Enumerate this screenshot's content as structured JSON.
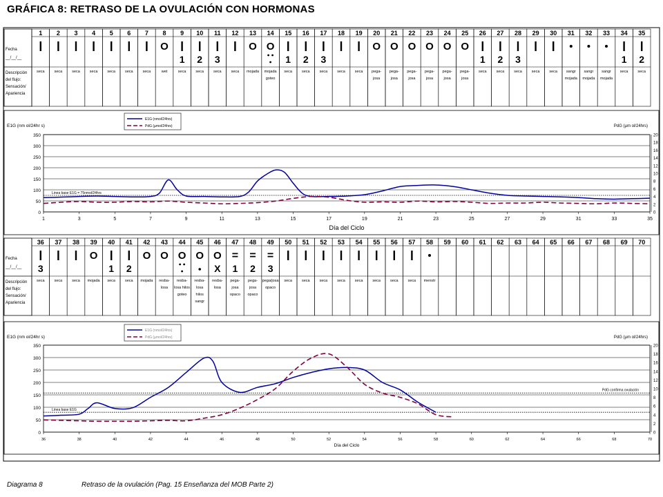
{
  "title": "GRÁFICA 8: RETRASO DE LA OVULACIÓN CON HORMONAS",
  "caption": {
    "left": "Diagrama 8",
    "right": "Retraso de la ovulación  (Pag. 15 Enseñanza del MOB Parte 2)"
  },
  "row_labels": {
    "fecha": "Fecha",
    "fecha_fmt": "__/__/__",
    "descripcion": [
      "Descripción",
      "del flujo:",
      "Sensación/",
      "Apariencia"
    ]
  },
  "tables": [
    {
      "days": [
        1,
        2,
        3,
        4,
        5,
        6,
        7,
        8,
        9,
        10,
        11,
        12,
        13,
        14,
        15,
        16,
        17,
        18,
        19,
        20,
        21,
        22,
        23,
        24,
        25,
        26,
        27,
        28,
        29,
        30,
        31,
        32,
        33,
        34,
        35
      ],
      "symbols": [
        {
          "t": "I"
        },
        {
          "t": "I"
        },
        {
          "t": "I"
        },
        {
          "t": "I"
        },
        {
          "t": "I"
        },
        {
          "t": "I"
        },
        {
          "t": "I"
        },
        {
          "t": "O"
        },
        {
          "t": "I",
          "n": "1"
        },
        {
          "t": "I",
          "n": "2"
        },
        {
          "t": "I",
          "n": "3"
        },
        {
          "t": "I"
        },
        {
          "t": "O"
        },
        {
          "t": "O",
          "x": "dots"
        },
        {
          "t": "I",
          "n": "1"
        },
        {
          "t": "I",
          "n": "2"
        },
        {
          "t": "I",
          "n": "3"
        },
        {
          "t": "I"
        },
        {
          "t": "I"
        },
        {
          "t": "O"
        },
        {
          "t": "O"
        },
        {
          "t": "O"
        },
        {
          "t": "O"
        },
        {
          "t": "O"
        },
        {
          "t": "O"
        },
        {
          "t": "I",
          "n": "1"
        },
        {
          "t": "I",
          "n": "2"
        },
        {
          "t": "I",
          "n": "3"
        },
        {
          "t": "I"
        },
        {
          "t": "I"
        },
        {
          "t": "dot"
        },
        {
          "t": "dot"
        },
        {
          "t": "dot"
        },
        {
          "t": "I",
          "n": "1"
        },
        {
          "t": "I",
          "n": "2"
        }
      ],
      "desc": [
        [
          "seca"
        ],
        [
          "seca"
        ],
        [
          "seca"
        ],
        [
          "seca"
        ],
        [
          "seca"
        ],
        [
          "seca"
        ],
        [
          "seca"
        ],
        [
          "wet"
        ],
        [
          "seca"
        ],
        [
          "seca"
        ],
        [
          "seca"
        ],
        [
          "seca"
        ],
        [
          "mojada"
        ],
        [
          "mojada",
          "goteo"
        ],
        [
          "seca"
        ],
        [
          "seca"
        ],
        [
          "seca"
        ],
        [
          "seca"
        ],
        [
          "seca"
        ],
        [
          "pega-",
          "josa"
        ],
        [
          "pega-",
          "josa"
        ],
        [
          "pega-",
          "josa"
        ],
        [
          "pega-",
          "josa"
        ],
        [
          "pega-",
          "josa"
        ],
        [
          "pega-",
          "josa"
        ],
        [
          "seca"
        ],
        [
          "seca"
        ],
        [
          "seca"
        ],
        [
          "seca"
        ],
        [
          "seca"
        ],
        [
          "sangr",
          "mojada"
        ],
        [
          "sangr",
          "mojada"
        ],
        [
          "sangr",
          "mojada"
        ],
        [
          "seca"
        ],
        [
          "seca"
        ]
      ]
    },
    {
      "days": [
        36,
        37,
        38,
        39,
        40,
        41,
        42,
        43,
        44,
        45,
        46,
        47,
        48,
        49,
        50,
        51,
        52,
        53,
        54,
        55,
        56,
        57,
        58,
        59,
        60,
        61,
        62,
        63,
        64,
        65,
        66,
        67,
        68,
        69,
        70
      ],
      "symbols": [
        {
          "t": "I",
          "n": "3"
        },
        {
          "t": "I"
        },
        {
          "t": "I"
        },
        {
          "t": "O"
        },
        {
          "t": "I",
          "n": "1"
        },
        {
          "t": "I",
          "n": "2"
        },
        {
          "t": "O"
        },
        {
          "t": "O"
        },
        {
          "t": "O",
          "x": "dots"
        },
        {
          "t": "O",
          "x": "dot"
        },
        {
          "t": "O",
          "x": "X"
        },
        {
          "t": "=",
          "n": "1"
        },
        {
          "t": "=",
          "n": "2"
        },
        {
          "t": "=",
          "n": "3"
        },
        {
          "t": "I"
        },
        {
          "t": "I"
        },
        {
          "t": "I"
        },
        {
          "t": "I"
        },
        {
          "t": "I"
        },
        {
          "t": "I"
        },
        {
          "t": "I"
        },
        {
          "t": "I"
        },
        {
          "t": "dot"
        },
        {
          "t": ""
        },
        {
          "t": ""
        },
        {
          "t": ""
        },
        {
          "t": ""
        },
        {
          "t": ""
        },
        {
          "t": ""
        },
        {
          "t": ""
        },
        {
          "t": ""
        },
        {
          "t": ""
        },
        {
          "t": ""
        },
        {
          "t": ""
        },
        {
          "t": ""
        }
      ],
      "desc": [
        [
          "seca"
        ],
        [
          "seca"
        ],
        [
          "seca"
        ],
        [
          "mojada"
        ],
        [
          "seca"
        ],
        [
          "seca"
        ],
        [
          "mojada"
        ],
        [
          "resba-",
          "losa"
        ],
        [
          "resba-",
          "losa hilos",
          "goteo"
        ],
        [
          "resba-",
          "losa",
          "hilos",
          "sangr"
        ],
        [
          "resba-",
          "losa"
        ],
        [
          "pega-",
          "josa",
          "opaco"
        ],
        [
          "pega-",
          "josa",
          "opaco"
        ],
        [
          "pega/josa",
          "opaco"
        ],
        [
          "seca"
        ],
        [
          "seca"
        ],
        [
          "seca"
        ],
        [
          "seca"
        ],
        [
          "seca"
        ],
        [
          "seca"
        ],
        [
          "seca"
        ],
        [
          "seca"
        ],
        [
          "menstr"
        ],
        [],
        [],
        [],
        [],
        [],
        [],
        [],
        [],
        [],
        [],
        [],
        []
      ]
    }
  ],
  "chart_data": [
    {
      "type": "line",
      "xlabel": "Día del Ciclo",
      "ylabel": "E1G (nm ol/24hr s)",
      "y2label": "PdG (µm ol/24hrs)",
      "xlim": [
        1,
        35
      ],
      "ylim": [
        0,
        350
      ],
      "y2lim": [
        0,
        20
      ],
      "xticks": [
        1,
        3,
        5,
        7,
        9,
        11,
        13,
        15,
        17,
        19,
        21,
        23,
        25,
        27,
        29,
        31,
        33,
        35
      ],
      "yticks": [
        0,
        50,
        100,
        150,
        200,
        250,
        300,
        350
      ],
      "y2ticks": [
        0,
        2,
        4,
        6,
        8,
        10,
        12,
        14,
        16,
        18,
        20
      ],
      "legend": [
        "E1G (nmol/24hrs)",
        "PdG (µmol/24hrs)"
      ],
      "legend_position": "top-center",
      "grid": true,
      "series": [
        {
          "name": "E1G (nmol/24hrs)",
          "color": "#0000a0",
          "axis": "left",
          "x": [
            1,
            2,
            3,
            4,
            5,
            6,
            7,
            7.5,
            8,
            8.5,
            9,
            10,
            11,
            12,
            12.5,
            13,
            13.5,
            14,
            14.5,
            15,
            15.5,
            16,
            17,
            18,
            19,
            20,
            21,
            22,
            23,
            24,
            25,
            26,
            27,
            28,
            29,
            30,
            31,
            32,
            33,
            34,
            35
          ],
          "y": [
            65,
            67,
            70,
            72,
            70,
            68,
            70,
            85,
            145,
            100,
            72,
            70,
            68,
            70,
            90,
            140,
            170,
            190,
            180,
            130,
            85,
            70,
            70,
            72,
            78,
            95,
            115,
            120,
            122,
            115,
            100,
            85,
            75,
            72,
            70,
            68,
            65,
            60,
            58,
            60,
            62
          ]
        },
        {
          "name": "PdG (µmol/24hrs)",
          "color": "#800040",
          "dash": true,
          "axis": "right",
          "x": [
            1,
            2,
            3,
            4,
            5,
            6,
            7,
            8,
            9,
            10,
            11,
            12,
            13,
            14,
            15,
            16,
            17,
            18,
            19,
            20,
            21,
            22,
            23,
            24,
            25,
            26,
            27,
            28,
            29,
            30,
            31,
            32,
            33,
            34,
            35
          ],
          "y": [
            2.2,
            2.5,
            2.7,
            2.5,
            2.5,
            2.7,
            2.6,
            2.8,
            2.5,
            2.3,
            2.1,
            2.2,
            2.4,
            2.8,
            3.5,
            4.0,
            3.8,
            3.0,
            2.5,
            2.6,
            2.5,
            2.8,
            2.6,
            2.7,
            2.5,
            2.2,
            2.3,
            2.3,
            2.5,
            2.3,
            2.2,
            2.1,
            2.3,
            2.2,
            2.1
          ]
        }
      ],
      "reference_lines": [
        {
          "value": 75,
          "axis": "left",
          "label": "Linea base E1G = 75nmol/24hrs"
        }
      ]
    },
    {
      "type": "line",
      "xlabel": "Día del Ciclo",
      "ylabel": "E1G (nm ol/24hr s)",
      "y2label": "PdG (µm ol/24hrs)",
      "xlim": [
        36,
        70
      ],
      "ylim": [
        0,
        350
      ],
      "y2lim": [
        0,
        20
      ],
      "xticks": [
        36,
        38,
        40,
        42,
        44,
        46,
        48,
        50,
        52,
        54,
        56,
        58,
        60,
        62,
        64,
        66,
        68,
        70
      ],
      "yticks": [
        0,
        50,
        100,
        150,
        200,
        250,
        300,
        350
      ],
      "y2ticks": [
        0,
        2,
        4,
        6,
        8,
        10,
        12,
        14,
        16,
        18,
        20
      ],
      "legend": [
        "E1G (nmol/24hrs)",
        "PdG (µmol/24hrs)"
      ],
      "legend_position": "top-center",
      "grid": true,
      "series": [
        {
          "name": "E1G (nmol/24hrs)",
          "color": "#0000a0",
          "axis": "left",
          "x": [
            36,
            37,
            38,
            38.5,
            39,
            40,
            41,
            42,
            43,
            44,
            45,
            45.5,
            46,
            47,
            48,
            49,
            50,
            51,
            52,
            53,
            54,
            55,
            56,
            57,
            58
          ],
          "y": [
            65,
            68,
            72,
            95,
            118,
            95,
            98,
            140,
            180,
            240,
            298,
            285,
            200,
            160,
            180,
            195,
            220,
            240,
            255,
            260,
            250,
            200,
            170,
            120,
            80
          ],
          "end_x": 58
        },
        {
          "name": "PdG (µmol/24hrs)",
          "color": "#800040",
          "dash": true,
          "axis": "right",
          "x": [
            36,
            37,
            38,
            39,
            40,
            41,
            42,
            43,
            44,
            45,
            46,
            47,
            48,
            49,
            50,
            51,
            52,
            53,
            54,
            55,
            56,
            57,
            58,
            59
          ],
          "y": [
            2.8,
            2.7,
            2.6,
            2.5,
            2.5,
            2.5,
            2.6,
            2.7,
            2.6,
            3.2,
            4.0,
            5.5,
            7.5,
            10,
            14,
            17,
            18,
            15,
            11,
            9,
            8,
            6.5,
            4,
            3.5
          ]
        }
      ],
      "reference_lines": [
        {
          "value": 80,
          "axis": "left",
          "label": "Linea base E1G"
        },
        {
          "value": 9,
          "axis": "right",
          "label": "PdG confirma ovulación"
        }
      ]
    }
  ]
}
